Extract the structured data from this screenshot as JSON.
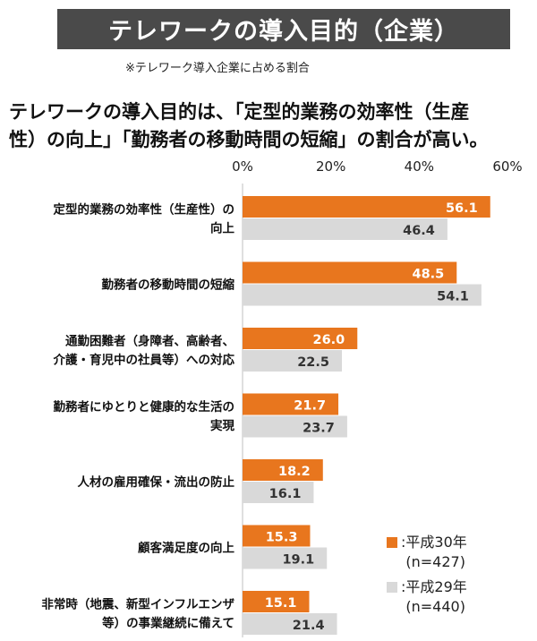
{
  "header": {
    "title": "テレワークの導入目的（企業）",
    "note": "※テレワーク導入企業に占める割合",
    "headline_line1": "テレワークの導入目的は、「定型的業務の効率性（生産",
    "headline_line2": "性）の向上」「勤務者の移動時間の短縮」の割合が高い。"
  },
  "colors": {
    "series1": "#e8761e",
    "series2": "#d9d9d9",
    "title_bg": "#4a4a4a"
  },
  "chart_data": {
    "type": "bar",
    "orientation": "horizontal",
    "xlim": [
      0,
      60
    ],
    "x_ticks": [
      "0%",
      "20%",
      "40%",
      "60%"
    ],
    "grid": false,
    "legend_position": "bottom-right",
    "categories": [
      [
        "定型的業務の効率性（生産性）の",
        "向上"
      ],
      [
        "勤務者の移動時間の短縮"
      ],
      [
        "通勤困難者（身障者、高齢者、",
        "介護・育児中の社員等）への対応"
      ],
      [
        "勤務者にゆとりと健康的な生活の",
        "実現"
      ],
      [
        "人材の雇用確保・流出の防止"
      ],
      [
        "顧客満足度の向上"
      ],
      [
        "非常時（地震、新型インフルエンザ",
        "等）の事業継続に備えて"
      ]
    ],
    "series": [
      {
        "name": "平成30年\n(n=427)",
        "values": [
          56.1,
          48.5,
          26.0,
          21.7,
          18.2,
          15.3,
          15.1
        ],
        "labels": [
          "56.1",
          "48.5",
          "26.0",
          "21.7",
          "18.2",
          "15.3",
          "15.1"
        ]
      },
      {
        "name": "平成29年\n(n=440)",
        "values": [
          46.4,
          54.1,
          22.5,
          23.7,
          16.1,
          19.1,
          21.4
        ],
        "labels": [
          "46.4",
          "54.1",
          "22.5",
          "23.7",
          "16.1",
          "19.1",
          "21.4"
        ]
      }
    ]
  }
}
